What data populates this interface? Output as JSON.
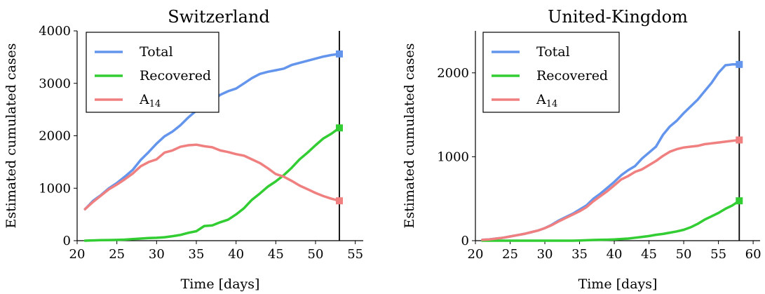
{
  "chart_data": [
    {
      "type": "line",
      "title": "Switzerland",
      "xlabel": "Time [days]",
      "ylabel": "Estimated cumulated cases",
      "xlim": [
        20,
        56
      ],
      "ylim": [
        0,
        4000
      ],
      "xticks": [
        20,
        25,
        30,
        35,
        40,
        45,
        50,
        55
      ],
      "yticks": [
        0,
        1000,
        2000,
        3000,
        4000
      ],
      "vline_x": 53,
      "legend": {
        "placement": "top-left"
      },
      "series": [
        {
          "name": "Total",
          "color": "#6495ed",
          "x": [
            21,
            22,
            23,
            24,
            25,
            26,
            27,
            28,
            29,
            30,
            31,
            32,
            33,
            34,
            35,
            36,
            37,
            38,
            39,
            40,
            41,
            42,
            43,
            44,
            45,
            46,
            47,
            48,
            49,
            50,
            51,
            52,
            53
          ],
          "y": [
            600,
            760,
            870,
            1000,
            1100,
            1220,
            1350,
            1540,
            1690,
            1850,
            1990,
            2080,
            2200,
            2350,
            2480,
            2580,
            2670,
            2780,
            2850,
            2900,
            3000,
            3100,
            3180,
            3220,
            3250,
            3280,
            3350,
            3390,
            3430,
            3470,
            3510,
            3540,
            3560
          ]
        },
        {
          "name": "Recovered",
          "color": "#32cd32",
          "x": [
            21,
            22,
            23,
            24,
            25,
            26,
            27,
            28,
            29,
            30,
            31,
            32,
            33,
            34,
            35,
            36,
            37,
            38,
            39,
            40,
            41,
            42,
            43,
            44,
            45,
            46,
            47,
            48,
            49,
            50,
            51,
            52,
            53
          ],
          "y": [
            0,
            5,
            10,
            12,
            15,
            20,
            30,
            40,
            50,
            55,
            65,
            85,
            110,
            150,
            180,
            280,
            290,
            350,
            400,
            500,
            620,
            780,
            900,
            1030,
            1130,
            1250,
            1390,
            1550,
            1680,
            1820,
            1950,
            2040,
            2150
          ]
        },
        {
          "name": "A",
          "name_sub": "14",
          "color": "#f08080",
          "x": [
            21,
            22,
            23,
            24,
            25,
            26,
            27,
            28,
            29,
            30,
            31,
            32,
            33,
            34,
            35,
            36,
            37,
            38,
            39,
            40,
            41,
            42,
            43,
            44,
            45,
            46,
            47,
            48,
            49,
            50,
            51,
            52,
            53
          ],
          "y": [
            600,
            740,
            860,
            980,
            1070,
            1170,
            1280,
            1420,
            1500,
            1550,
            1680,
            1720,
            1790,
            1820,
            1830,
            1800,
            1780,
            1720,
            1690,
            1650,
            1620,
            1550,
            1480,
            1380,
            1270,
            1220,
            1140,
            1050,
            980,
            910,
            850,
            800,
            760
          ]
        }
      ]
    },
    {
      "type": "line",
      "title": "United-Kingdom",
      "xlabel": "Time [days]",
      "ylabel": "Estimated cumulated cases",
      "xlim": [
        20,
        61
      ],
      "ylim": [
        0,
        2500
      ],
      "xticks": [
        20,
        25,
        30,
        35,
        40,
        45,
        50,
        55,
        60
      ],
      "yticks": [
        0,
        1000,
        2000
      ],
      "vline_x": 58,
      "legend": {
        "placement": "top-left"
      },
      "series": [
        {
          "name": "Total",
          "color": "#6495ed",
          "x": [
            21,
            22,
            23,
            24,
            25,
            26,
            27,
            28,
            29,
            30,
            31,
            32,
            33,
            34,
            35,
            36,
            37,
            38,
            39,
            40,
            41,
            42,
            43,
            44,
            45,
            46,
            47,
            48,
            49,
            50,
            51,
            52,
            53,
            54,
            55,
            56,
            57,
            58
          ],
          "y": [
            10,
            15,
            25,
            35,
            50,
            65,
            80,
            100,
            120,
            150,
            190,
            240,
            280,
            320,
            370,
            420,
            500,
            560,
            630,
            700,
            780,
            840,
            890,
            980,
            1050,
            1120,
            1260,
            1360,
            1430,
            1520,
            1600,
            1680,
            1780,
            1880,
            2000,
            2090,
            2100,
            2100
          ]
        },
        {
          "name": "Recovered",
          "color": "#32cd32",
          "x": [
            21,
            22,
            23,
            24,
            25,
            26,
            27,
            28,
            29,
            30,
            31,
            32,
            33,
            34,
            35,
            36,
            37,
            38,
            39,
            40,
            41,
            42,
            43,
            44,
            45,
            46,
            47,
            48,
            49,
            50,
            51,
            52,
            53,
            54,
            55,
            56,
            57,
            58
          ],
          "y": [
            0,
            0,
            0,
            0,
            0,
            0,
            0,
            0,
            0,
            0,
            0,
            0,
            0,
            0,
            2,
            5,
            8,
            10,
            12,
            15,
            20,
            25,
            35,
            45,
            55,
            70,
            80,
            95,
            110,
            130,
            160,
            200,
            250,
            290,
            330,
            380,
            420,
            475
          ]
        },
        {
          "name": "A",
          "name_sub": "14",
          "color": "#f08080",
          "x": [
            21,
            22,
            23,
            24,
            25,
            26,
            27,
            28,
            29,
            30,
            31,
            32,
            33,
            34,
            35,
            36,
            37,
            38,
            39,
            40,
            41,
            42,
            43,
            44,
            45,
            46,
            47,
            48,
            49,
            50,
            51,
            52,
            53,
            54,
            55,
            56,
            57,
            58
          ],
          "y": [
            10,
            15,
            25,
            35,
            50,
            65,
            80,
            100,
            120,
            150,
            185,
            230,
            270,
            310,
            350,
            400,
            470,
            530,
            590,
            660,
            730,
            770,
            820,
            850,
            900,
            950,
            1010,
            1060,
            1090,
            1110,
            1120,
            1130,
            1150,
            1160,
            1170,
            1180,
            1190,
            1200
          ]
        }
      ]
    }
  ]
}
